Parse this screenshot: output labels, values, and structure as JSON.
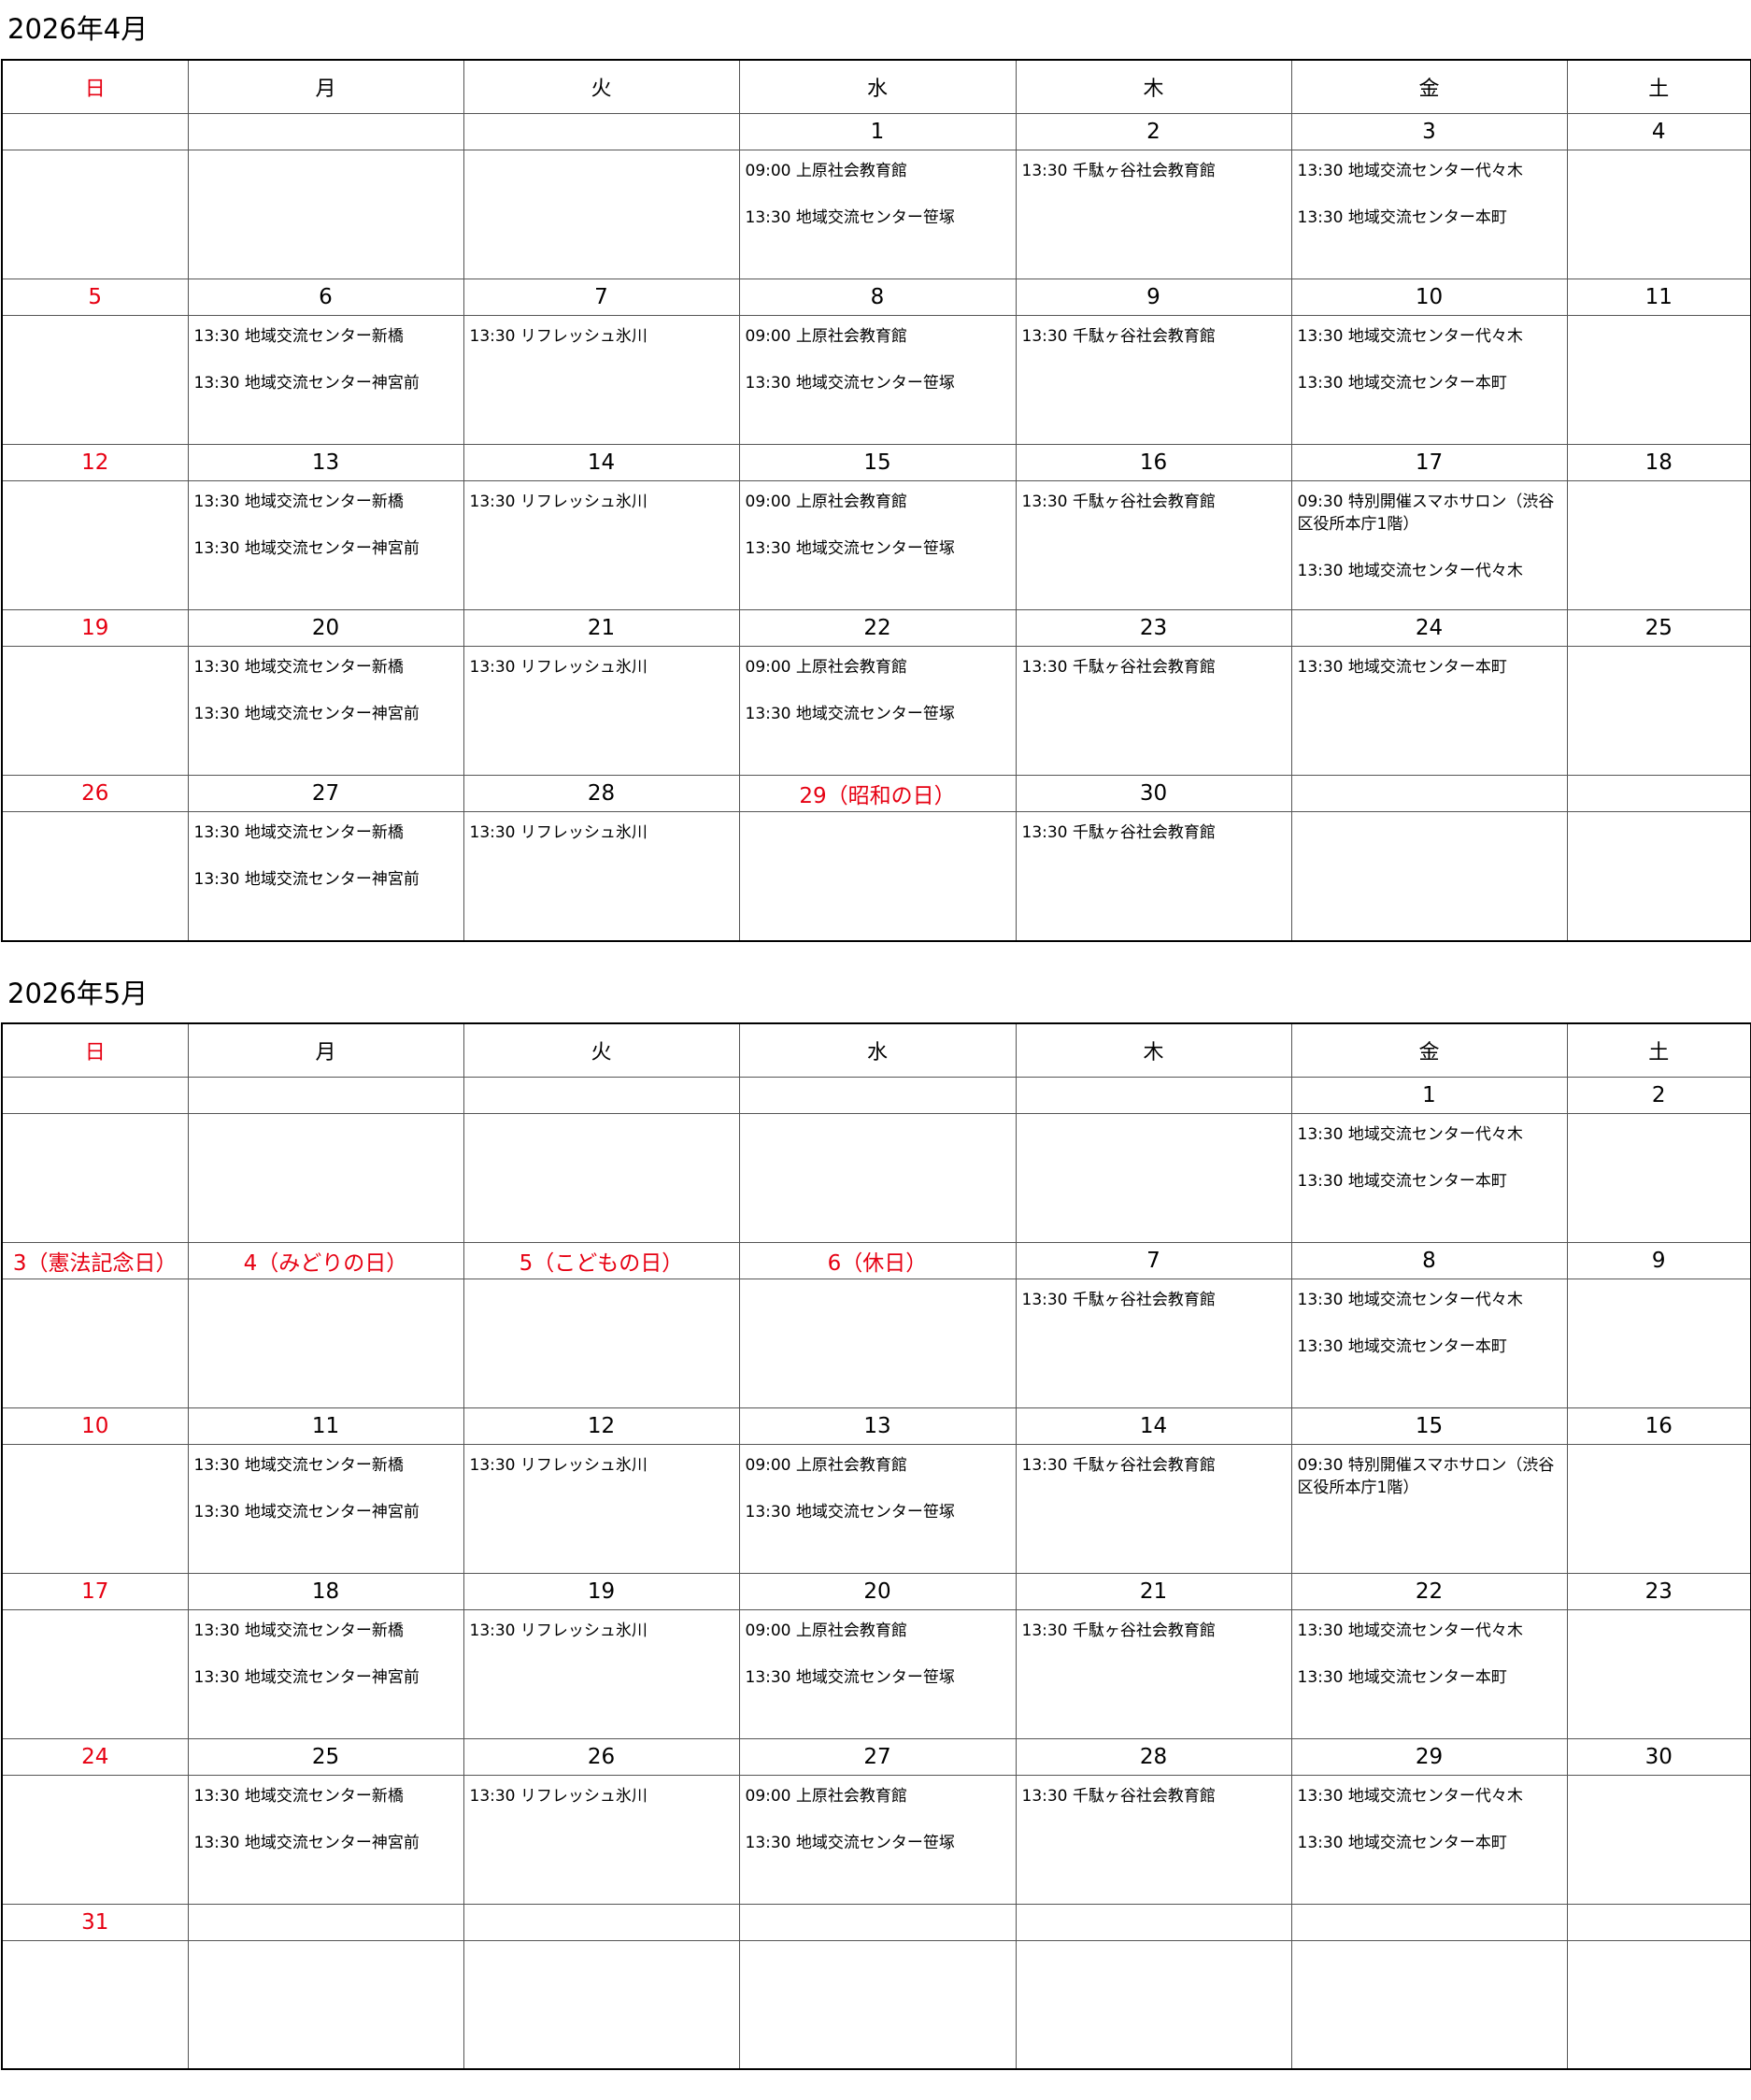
{
  "holiday_color": "#e60012",
  "months": [
    {
      "title": "2026年4月",
      "weekdays": [
        "日",
        "月",
        "火",
        "水",
        "木",
        "金",
        "土"
      ],
      "weeks": [
        {
          "days": [
            null,
            null,
            null,
            {
              "day": "1",
              "events": [
                "09:00 上原社会教育館",
                "13:30 地域交流センター笹塚"
              ]
            },
            {
              "day": "2",
              "events": [
                "13:30 千駄ヶ谷社会教育館"
              ]
            },
            {
              "day": "3",
              "events": [
                "13:30 地域交流センター代々木",
                "13:30 地域交流センター本町"
              ]
            },
            {
              "day": "4",
              "events": []
            }
          ]
        },
        {
          "days": [
            {
              "day": "5",
              "events": []
            },
            {
              "day": "6",
              "events": [
                "13:30 地域交流センター新橋",
                "13:30 地域交流センター神宮前"
              ]
            },
            {
              "day": "7",
              "events": [
                "13:30 リフレッシュ氷川"
              ]
            },
            {
              "day": "8",
              "events": [
                "09:00 上原社会教育館",
                "13:30 地域交流センター笹塚"
              ]
            },
            {
              "day": "9",
              "events": [
                "13:30 千駄ヶ谷社会教育館"
              ]
            },
            {
              "day": "10",
              "events": [
                "13:30 地域交流センター代々木",
                "13:30 地域交流センター本町"
              ]
            },
            {
              "day": "11",
              "events": []
            }
          ]
        },
        {
          "days": [
            {
              "day": "12",
              "events": []
            },
            {
              "day": "13",
              "events": [
                "13:30 地域交流センター新橋",
                "13:30 地域交流センター神宮前"
              ]
            },
            {
              "day": "14",
              "events": [
                "13:30 リフレッシュ氷川"
              ]
            },
            {
              "day": "15",
              "events": [
                "09:00 上原社会教育館",
                "13:30 地域交流センター笹塚"
              ]
            },
            {
              "day": "16",
              "events": [
                "13:30 千駄ヶ谷社会教育館"
              ]
            },
            {
              "day": "17",
              "events": [
                "09:30 特別開催スマホサロン（渋谷区役所本庁1階）",
                "13:30 地域交流センター代々木"
              ]
            },
            {
              "day": "18",
              "events": []
            }
          ]
        },
        {
          "days": [
            {
              "day": "19",
              "events": []
            },
            {
              "day": "20",
              "events": [
                "13:30 地域交流センター新橋",
                "13:30 地域交流センター神宮前"
              ]
            },
            {
              "day": "21",
              "events": [
                "13:30 リフレッシュ氷川"
              ]
            },
            {
              "day": "22",
              "events": [
                "09:00 上原社会教育館",
                "13:30 地域交流センター笹塚"
              ]
            },
            {
              "day": "23",
              "events": [
                "13:30 千駄ヶ谷社会教育館"
              ]
            },
            {
              "day": "24",
              "events": [
                "13:30 地域交流センター本町"
              ]
            },
            {
              "day": "25",
              "events": []
            }
          ]
        },
        {
          "days": [
            {
              "day": "26",
              "events": []
            },
            {
              "day": "27",
              "events": [
                "13:30 地域交流センター新橋",
                "13:30 地域交流センター神宮前"
              ]
            },
            {
              "day": "28",
              "events": [
                "13:30 リフレッシュ氷川"
              ]
            },
            {
              "day": "29（昭和の日）",
              "holiday": true,
              "events": []
            },
            {
              "day": "30",
              "events": [
                "13:30 千駄ヶ谷社会教育館"
              ]
            },
            null,
            null
          ]
        }
      ]
    },
    {
      "title": "2026年5月",
      "weekdays": [
        "日",
        "月",
        "火",
        "水",
        "木",
        "金",
        "土"
      ],
      "weeks": [
        {
          "days": [
            null,
            null,
            null,
            null,
            null,
            {
              "day": "1",
              "events": [
                "13:30 地域交流センター代々木",
                "13:30 地域交流センター本町"
              ]
            },
            {
              "day": "2",
              "events": []
            }
          ]
        },
        {
          "days": [
            {
              "day": "3（憲法記念日）",
              "events": []
            },
            {
              "day": "4（みどりの日）",
              "holiday": true,
              "events": []
            },
            {
              "day": "5（こどもの日）",
              "holiday": true,
              "events": []
            },
            {
              "day": "6（休日）",
              "holiday": true,
              "events": []
            },
            {
              "day": "7",
              "events": [
                "13:30 千駄ヶ谷社会教育館"
              ]
            },
            {
              "day": "8",
              "events": [
                "13:30 地域交流センター代々木",
                "13:30 地域交流センター本町"
              ]
            },
            {
              "day": "9",
              "events": []
            }
          ]
        },
        {
          "days": [
            {
              "day": "10",
              "events": []
            },
            {
              "day": "11",
              "events": [
                "13:30 地域交流センター新橋",
                "13:30 地域交流センター神宮前"
              ]
            },
            {
              "day": "12",
              "events": [
                "13:30 リフレッシュ氷川"
              ]
            },
            {
              "day": "13",
              "events": [
                "09:00 上原社会教育館",
                "13:30 地域交流センター笹塚"
              ]
            },
            {
              "day": "14",
              "events": [
                "13:30 千駄ヶ谷社会教育館"
              ]
            },
            {
              "day": "15",
              "events": [
                "09:30 特別開催スマホサロン（渋谷区役所本庁1階）"
              ]
            },
            {
              "day": "16",
              "events": []
            }
          ]
        },
        {
          "days": [
            {
              "day": "17",
              "events": []
            },
            {
              "day": "18",
              "events": [
                "13:30 地域交流センター新橋",
                "13:30 地域交流センター神宮前"
              ]
            },
            {
              "day": "19",
              "events": [
                "13:30 リフレッシュ氷川"
              ]
            },
            {
              "day": "20",
              "events": [
                "09:00 上原社会教育館",
                "13:30 地域交流センター笹塚"
              ]
            },
            {
              "day": "21",
              "events": [
                "13:30 千駄ヶ谷社会教育館"
              ]
            },
            {
              "day": "22",
              "events": [
                "13:30 地域交流センター代々木",
                "13:30 地域交流センター本町"
              ]
            },
            {
              "day": "23",
              "events": []
            }
          ]
        },
        {
          "days": [
            {
              "day": "24",
              "events": []
            },
            {
              "day": "25",
              "events": [
                "13:30 地域交流センター新橋",
                "13:30 地域交流センター神宮前"
              ]
            },
            {
              "day": "26",
              "events": [
                "13:30 リフレッシュ氷川"
              ]
            },
            {
              "day": "27",
              "events": [
                "09:00 上原社会教育館",
                "13:30 地域交流センター笹塚"
              ]
            },
            {
              "day": "28",
              "events": [
                "13:30 千駄ヶ谷社会教育館"
              ]
            },
            {
              "day": "29",
              "events": [
                "13:30 地域交流センター代々木",
                "13:30 地域交流センター本町"
              ]
            },
            {
              "day": "30",
              "events": []
            }
          ]
        },
        {
          "days": [
            {
              "day": "31",
              "events": []
            },
            null,
            null,
            null,
            null,
            null,
            null
          ]
        }
      ]
    }
  ]
}
